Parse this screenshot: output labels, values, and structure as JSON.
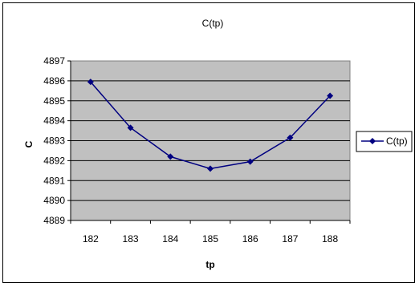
{
  "chart_data": {
    "type": "line",
    "title": "C(tp)",
    "xlabel": "tp",
    "ylabel": "C",
    "categories": [
      "182",
      "183",
      "184",
      "185",
      "186",
      "187",
      "188"
    ],
    "series": [
      {
        "name": "C(tp)",
        "values": [
          4895.95,
          4893.65,
          4892.2,
          4891.6,
          4891.95,
          4893.15,
          4895.25
        ],
        "color": "#000080"
      }
    ],
    "ylim": [
      4889,
      4897
    ],
    "yticks": [
      "4889",
      "4890",
      "4891",
      "4892",
      "4893",
      "4894",
      "4895",
      "4896",
      "4897"
    ],
    "grid": true,
    "plot_background": "#c0c0c0",
    "legend_position": "right",
    "marker": "diamond"
  }
}
